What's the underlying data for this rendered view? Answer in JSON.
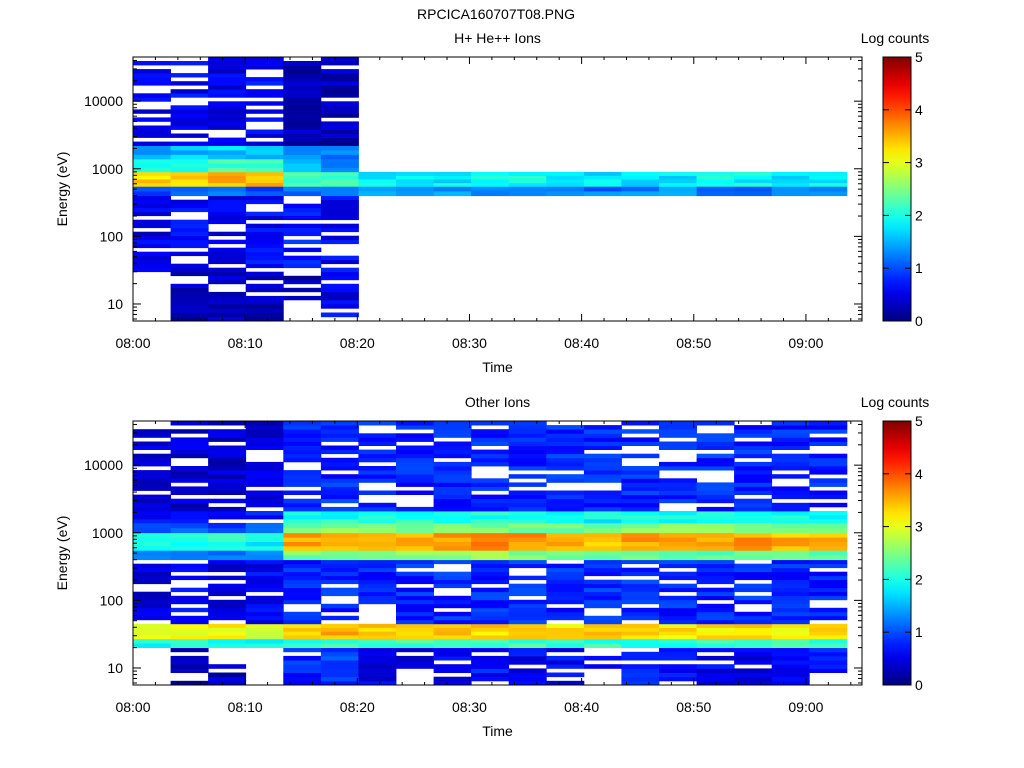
{
  "figure_title": "RPCICA160707T08.PNG",
  "chart_data": [
    {
      "type": "heatmap",
      "title": "H+ He++ Ions",
      "xlabel": "Time",
      "ylabel": "Energy (eV)",
      "colorbar_label": "Log counts",
      "yscale": "log",
      "ylim": [
        5.6,
        45000
      ],
      "xlim_minutes": [
        0,
        65
      ],
      "x_tick_labels": [
        "08:00",
        "08:10",
        "08:20",
        "08:30",
        "08:40",
        "08:50",
        "09:00"
      ],
      "y_tick_labels": [
        "10",
        "100",
        "1000",
        "10000"
      ],
      "colorbar_range": [
        0,
        5
      ],
      "colorbar_ticks": [
        "0",
        "1",
        "2",
        "3",
        "4",
        "5"
      ],
      "colormap": "jet",
      "time_bins": [
        "08:00",
        "08:03",
        "08:06",
        "08:10",
        "08:13",
        "08:16",
        "08:20",
        "08:23",
        "08:26",
        "08:30",
        "08:33",
        "08:36",
        "08:40",
        "08:43",
        "08:46",
        "08:50",
        "08:53",
        "08:56",
        "09:00"
      ],
      "profile": [
        {
          "energy_range": [
            5.6,
            10
          ],
          "log_counts": [
            0,
            0.3,
            0.3,
            0.3,
            0,
            0.6,
            0,
            0,
            0,
            0,
            0,
            0,
            0,
            0,
            0,
            0,
            0,
            0,
            0
          ]
        },
        {
          "energy_range": [
            10,
            30
          ],
          "log_counts": [
            0,
            0.3,
            0.4,
            0.3,
            0.3,
            0.5,
            0,
            0,
            0,
            0,
            0,
            0,
            0,
            0,
            0,
            0,
            0,
            0,
            0
          ]
        },
        {
          "energy_range": [
            30,
            400
          ],
          "log_counts": [
            0.5,
            0.6,
            0.5,
            0.6,
            0.7,
            0.6,
            0,
            0,
            0,
            0,
            0,
            0,
            0,
            0,
            0,
            0,
            0,
            0,
            0
          ]
        },
        {
          "energy_range": [
            400,
            550
          ],
          "log_counts": [
            1.0,
            1.0,
            1.1,
            1.0,
            1.2,
            1.4,
            1.3,
            1.3,
            1.3,
            1.2,
            1.3,
            1.3,
            1.2,
            1.3,
            1.3,
            1.2,
            1.2,
            1.3,
            1.3
          ]
        },
        {
          "energy_range": [
            550,
            900
          ],
          "log_counts": [
            3.3,
            3.4,
            3.5,
            3.4,
            2.2,
            2.1,
            1.8,
            1.9,
            1.8,
            1.9,
            1.9,
            1.8,
            1.8,
            1.8,
            1.8,
            1.9,
            1.9,
            1.8,
            1.8
          ]
        },
        {
          "energy_range": [
            900,
            1400
          ],
          "log_counts": [
            2.0,
            2.1,
            2.2,
            2.1,
            1.6,
            1.4,
            0,
            0,
            0,
            0,
            0,
            0,
            0,
            0,
            0,
            0,
            0,
            0,
            0
          ]
        },
        {
          "energy_range": [
            1400,
            2200
          ],
          "log_counts": [
            1.5,
            1.6,
            1.6,
            1.5,
            1.2,
            1.2,
            0,
            0,
            0,
            0,
            0,
            0,
            0,
            0,
            0,
            0,
            0,
            0,
            0
          ]
        },
        {
          "energy_range": [
            2200,
            45000
          ],
          "log_counts": [
            0.5,
            0.6,
            0.5,
            0.6,
            0.3,
            0.3,
            0,
            0,
            0,
            0,
            0,
            0,
            0,
            0,
            0,
            0,
            0,
            0,
            0
          ]
        }
      ]
    },
    {
      "type": "heatmap",
      "title": "Other Ions",
      "xlabel": "Time",
      "ylabel": "Energy (eV)",
      "colorbar_label": "Log counts",
      "yscale": "log",
      "ylim": [
        5.6,
        45000
      ],
      "xlim_minutes": [
        0,
        65
      ],
      "x_tick_labels": [
        "08:00",
        "08:10",
        "08:20",
        "08:30",
        "08:40",
        "08:50",
        "09:00"
      ],
      "y_tick_labels": [
        "10",
        "100",
        "1000",
        "10000"
      ],
      "colorbar_range": [
        0,
        5
      ],
      "colorbar_ticks": [
        "0",
        "1",
        "2",
        "3",
        "4",
        "5"
      ],
      "colormap": "jet",
      "time_bins": [
        "08:00",
        "08:03",
        "08:06",
        "08:10",
        "08:13",
        "08:16",
        "08:20",
        "08:23",
        "08:26",
        "08:30",
        "08:33",
        "08:36",
        "08:40",
        "08:43",
        "08:46",
        "08:50",
        "08:53",
        "08:56",
        "09:00"
      ],
      "profile": [
        {
          "energy_range": [
            5.6,
            20
          ],
          "log_counts": [
            0,
            0.3,
            0.3,
            0,
            0.8,
            0.9,
            0.5,
            0.5,
            0.6,
            0.7,
            0.6,
            0.6,
            0.6,
            0.7,
            0.6,
            0.6,
            0.5,
            0.6,
            0.7
          ]
        },
        {
          "energy_range": [
            20,
            27
          ],
          "log_counts": [
            2.0,
            2.0,
            2.0,
            2.0,
            2.1,
            2.1,
            2.1,
            2.2,
            2.1,
            2.1,
            2.2,
            2.1,
            2.1,
            2.1,
            2.1,
            2.1,
            2.1,
            2.1,
            2.1
          ]
        },
        {
          "energy_range": [
            27,
            45
          ],
          "log_counts": [
            3.0,
            3.1,
            3.1,
            3.0,
            3.3,
            3.5,
            3.3,
            3.4,
            3.3,
            3.3,
            3.3,
            3.2,
            3.3,
            3.3,
            3.2,
            3.2,
            3.3,
            3.2,
            3.2
          ]
        },
        {
          "energy_range": [
            45,
            400
          ],
          "log_counts": [
            0.5,
            0.6,
            0.5,
            0.6,
            0.8,
            0.8,
            0.8,
            0.8,
            0.8,
            0.8,
            0.8,
            0.8,
            0.8,
            0.8,
            0.8,
            0.8,
            0.8,
            0.8,
            0.8
          ]
        },
        {
          "energy_range": [
            400,
            550
          ],
          "log_counts": [
            1.2,
            1.2,
            1.2,
            1.2,
            2.4,
            2.4,
            2.4,
            2.5,
            2.5,
            2.5,
            2.5,
            2.4,
            2.4,
            2.4,
            2.4,
            2.4,
            2.4,
            2.4,
            2.4
          ]
        },
        {
          "energy_range": [
            550,
            1000
          ],
          "log_counts": [
            1.9,
            2.0,
            2.0,
            1.9,
            3.5,
            3.6,
            3.5,
            3.6,
            3.6,
            3.8,
            3.6,
            3.6,
            3.5,
            3.6,
            3.5,
            3.6,
            3.6,
            3.5,
            3.5
          ]
        },
        {
          "energy_range": [
            1000,
            1400
          ],
          "log_counts": [
            1.0,
            1.0,
            1.0,
            1.1,
            2.4,
            2.5,
            2.5,
            2.5,
            2.6,
            2.5,
            2.5,
            2.5,
            2.5,
            2.5,
            2.5,
            2.5,
            2.5,
            2.5,
            2.5
          ]
        },
        {
          "energy_range": [
            1400,
            2100
          ],
          "log_counts": [
            0.6,
            0.6,
            0.6,
            0.7,
            1.9,
            2.0,
            1.9,
            2.0,
            2.0,
            2.0,
            2.0,
            1.9,
            1.9,
            1.9,
            1.9,
            1.9,
            1.9,
            2.0,
            1.9
          ]
        },
        {
          "energy_range": [
            2100,
            45000
          ],
          "log_counts": [
            0.4,
            0.4,
            0.4,
            0.4,
            0.8,
            0.8,
            0.8,
            0.8,
            0.8,
            0.8,
            0.8,
            0.8,
            0.8,
            0.8,
            0.8,
            0.8,
            0.8,
            0.8,
            0.8
          ]
        }
      ]
    }
  ]
}
